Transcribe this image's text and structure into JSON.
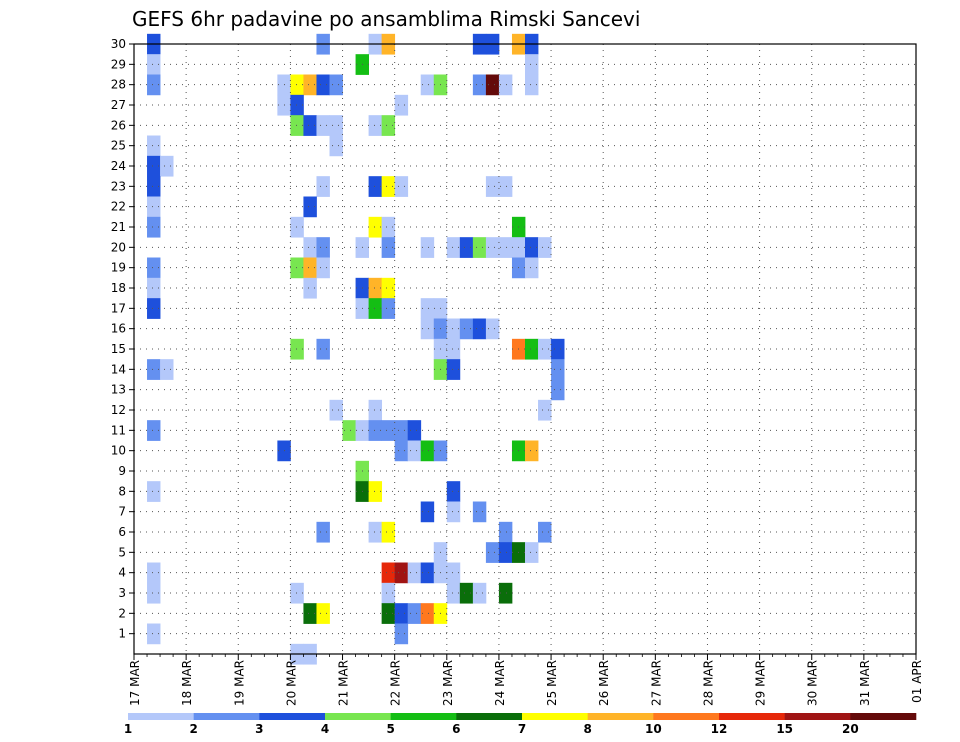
{
  "chart_data": {
    "type": "heatmap",
    "title": "GEFS 6hr padavine po ansamblima Rimski Sancevi",
    "x_labels": [
      "17 MAR",
      "18 MAR",
      "19 MAR",
      "20 MAR",
      "21 MAR",
      "22 MAR",
      "23 MAR",
      "24 MAR",
      "25 MAR",
      "26 MAR",
      "27 MAR",
      "28 MAR",
      "29 MAR",
      "30 MAR",
      "31 MAR",
      "01 APR"
    ],
    "x_range": [
      "17 MAR 00Z",
      "01 APR 00Z"
    ],
    "time_step_hours": 6,
    "y_labels": [
      "1",
      "2",
      "3",
      "4",
      "5",
      "6",
      "7",
      "8",
      "9",
      "10",
      "11",
      "12",
      "13",
      "14",
      "15",
      "16",
      "17",
      "18",
      "19",
      "20",
      "21",
      "22",
      "23",
      "24",
      "25",
      "26",
      "27",
      "28",
      "29",
      "30"
    ],
    "y_range": [
      0,
      30
    ],
    "grid": true,
    "legend_placement": "bottom",
    "legend_levels": [
      "1",
      "2",
      "3",
      "4",
      "5",
      "6",
      "7",
      "8",
      "10",
      "12",
      "15",
      "20"
    ],
    "legend_colors": [
      "#b4c8fa",
      "#6490f0",
      "#1e50dc",
      "#78e650",
      "#14be14",
      "#0a6e0a",
      "#ffff00",
      "#ffb428",
      "#ff781e",
      "#e6280a",
      "#a01414",
      "#640a0a"
    ],
    "cells": [
      [
        30,
        1,
        3
      ],
      [
        29,
        1,
        1
      ],
      [
        28,
        1,
        2
      ],
      [
        25,
        1,
        1
      ],
      [
        24,
        1,
        3
      ],
      [
        24,
        2,
        1
      ],
      [
        23,
        1,
        3
      ],
      [
        22,
        1,
        1
      ],
      [
        21,
        1,
        2
      ],
      [
        19,
        1,
        2
      ],
      [
        18,
        1,
        1
      ],
      [
        17,
        1,
        3
      ],
      [
        14,
        1,
        2
      ],
      [
        14,
        2,
        1
      ],
      [
        11,
        1,
        2
      ],
      [
        8,
        1,
        1
      ],
      [
        4,
        1,
        1
      ],
      [
        3,
        1,
        1
      ],
      [
        1,
        1,
        1
      ],
      [
        30,
        14,
        2
      ],
      [
        30,
        18,
        1
      ],
      [
        30,
        19,
        8
      ],
      [
        30,
        26,
        3
      ],
      [
        30,
        27,
        3
      ],
      [
        30,
        29,
        8
      ],
      [
        30,
        30,
        3
      ],
      [
        29,
        17,
        5
      ],
      [
        29,
        30,
        1
      ],
      [
        28,
        11,
        1
      ],
      [
        28,
        12,
        7
      ],
      [
        28,
        13,
        8
      ],
      [
        28,
        14,
        3
      ],
      [
        28,
        15,
        2
      ],
      [
        28,
        22,
        1
      ],
      [
        28,
        23,
        4
      ],
      [
        28,
        26,
        2
      ],
      [
        28,
        27,
        12
      ],
      [
        28,
        28,
        1
      ],
      [
        28,
        30,
        1
      ],
      [
        27,
        11,
        1
      ],
      [
        27,
        12,
        3
      ],
      [
        27,
        20,
        1
      ],
      [
        26,
        12,
        4
      ],
      [
        26,
        13,
        3
      ],
      [
        26,
        14,
        1
      ],
      [
        26,
        15,
        1
      ],
      [
        26,
        18,
        1
      ],
      [
        26,
        19,
        4
      ],
      [
        25,
        15,
        1
      ],
      [
        23,
        14,
        1
      ],
      [
        23,
        18,
        3
      ],
      [
        23,
        19,
        7
      ],
      [
        23,
        20,
        1
      ],
      [
        23,
        27,
        1
      ],
      [
        23,
        28,
        1
      ],
      [
        22,
        13,
        3
      ],
      [
        21,
        12,
        1
      ],
      [
        21,
        18,
        7
      ],
      [
        21,
        19,
        1
      ],
      [
        21,
        29,
        5
      ],
      [
        20,
        13,
        1
      ],
      [
        20,
        14,
        2
      ],
      [
        20,
        17,
        1
      ],
      [
        20,
        19,
        2
      ],
      [
        20,
        22,
        1
      ],
      [
        20,
        24,
        1
      ],
      [
        20,
        25,
        3
      ],
      [
        20,
        26,
        4
      ],
      [
        20,
        27,
        1
      ],
      [
        20,
        28,
        1
      ],
      [
        20,
        29,
        1
      ],
      [
        20,
        30,
        3
      ],
      [
        20,
        31,
        1
      ],
      [
        19,
        12,
        4
      ],
      [
        19,
        13,
        8
      ],
      [
        19,
        14,
        1
      ],
      [
        19,
        29,
        2
      ],
      [
        19,
        30,
        1
      ],
      [
        18,
        13,
        1
      ],
      [
        18,
        17,
        3
      ],
      [
        18,
        18,
        8
      ],
      [
        18,
        19,
        7
      ],
      [
        17,
        17,
        1
      ],
      [
        17,
        18,
        5
      ],
      [
        17,
        19,
        2
      ],
      [
        17,
        22,
        1
      ],
      [
        17,
        23,
        1
      ],
      [
        16,
        22,
        1
      ],
      [
        16,
        23,
        2
      ],
      [
        16,
        24,
        1
      ],
      [
        16,
        25,
        2
      ],
      [
        16,
        26,
        3
      ],
      [
        16,
        27,
        1
      ],
      [
        15,
        12,
        4
      ],
      [
        15,
        14,
        2
      ],
      [
        15,
        23,
        1
      ],
      [
        15,
        24,
        1
      ],
      [
        15,
        29,
        9
      ],
      [
        15,
        30,
        5
      ],
      [
        15,
        31,
        1
      ],
      [
        15,
        32,
        3
      ],
      [
        14,
        23,
        4
      ],
      [
        14,
        24,
        3
      ],
      [
        14,
        32,
        2
      ],
      [
        13,
        32,
        2
      ],
      [
        12,
        15,
        1
      ],
      [
        12,
        18,
        1
      ],
      [
        12,
        31,
        1
      ],
      [
        11,
        16,
        4
      ],
      [
        11,
        17,
        1
      ],
      [
        11,
        18,
        2
      ],
      [
        11,
        19,
        2
      ],
      [
        11,
        20,
        2
      ],
      [
        11,
        21,
        3
      ],
      [
        10,
        11,
        3
      ],
      [
        10,
        20,
        2
      ],
      [
        10,
        21,
        1
      ],
      [
        10,
        22,
        5
      ],
      [
        10,
        23,
        2
      ],
      [
        10,
        29,
        5
      ],
      [
        10,
        30,
        8
      ],
      [
        9,
        17,
        4
      ],
      [
        8,
        17,
        6
      ],
      [
        8,
        18,
        7
      ],
      [
        8,
        24,
        3
      ],
      [
        7,
        22,
        3
      ],
      [
        7,
        24,
        1
      ],
      [
        7,
        26,
        2
      ],
      [
        6,
        14,
        2
      ],
      [
        6,
        18,
        1
      ],
      [
        6,
        19,
        7
      ],
      [
        6,
        28,
        2
      ],
      [
        6,
        31,
        2
      ],
      [
        5,
        23,
        1
      ],
      [
        5,
        27,
        2
      ],
      [
        5,
        28,
        3
      ],
      [
        5,
        29,
        6
      ],
      [
        5,
        30,
        1
      ],
      [
        4,
        19,
        10
      ],
      [
        4,
        20,
        11
      ],
      [
        4,
        21,
        1
      ],
      [
        4,
        22,
        3
      ],
      [
        4,
        23,
        1
      ],
      [
        4,
        24,
        1
      ],
      [
        3,
        12,
        1
      ],
      [
        3,
        19,
        1
      ],
      [
        3,
        24,
        1
      ],
      [
        3,
        25,
        6
      ],
      [
        3,
        26,
        1
      ],
      [
        3,
        28,
        6
      ],
      [
        2,
        13,
        6
      ],
      [
        2,
        14,
        7
      ],
      [
        2,
        19,
        6
      ],
      [
        2,
        20,
        3
      ],
      [
        2,
        21,
        2
      ],
      [
        2,
        22,
        9
      ],
      [
        2,
        23,
        7
      ],
      [
        1,
        20,
        2
      ],
      [
        0,
        12,
        1
      ],
      [
        0,
        13,
        1
      ]
    ]
  }
}
